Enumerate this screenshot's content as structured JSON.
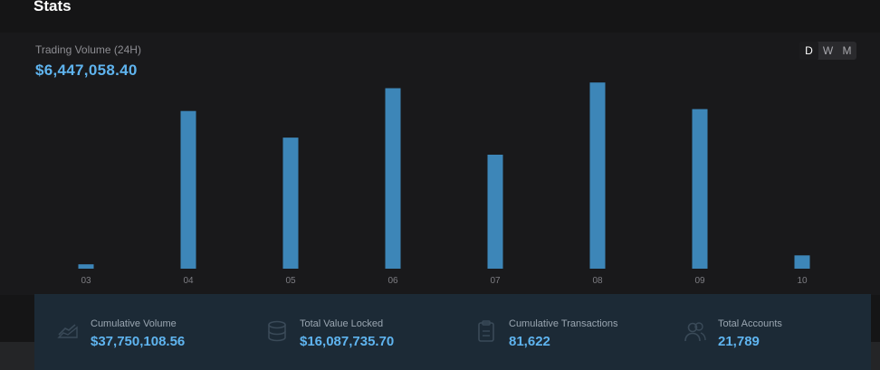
{
  "page": {
    "title": "Stats"
  },
  "volume": {
    "label": "Trading Volume (24H)",
    "value": "$6,447,058.40"
  },
  "period_toggle": {
    "options": [
      "D",
      "W",
      "M"
    ],
    "selected": "D"
  },
  "chart_data": {
    "type": "bar",
    "categories": [
      "03",
      "04",
      "05",
      "06",
      "07",
      "08",
      "09",
      "10"
    ],
    "values": [
      2.3,
      83,
      69,
      95,
      60,
      98,
      84,
      7
    ],
    "color": "#3d86b8",
    "ylim": [
      0,
      100
    ],
    "grid": false
  },
  "stats": [
    {
      "label": "Cumulative Volume",
      "value": "$37,750,108.56",
      "icon": "volume-icon"
    },
    {
      "label": "Total Value Locked",
      "value": "$16,087,735.70",
      "icon": "database-icon"
    },
    {
      "label": "Cumulative Transactions",
      "value": "81,622",
      "icon": "clipboard-icon"
    },
    {
      "label": "Total Accounts",
      "value": "21,789",
      "icon": "users-icon"
    }
  ],
  "colors": {
    "accent": "#5fb4ef",
    "bar": "#3d86b8",
    "background": "#151516"
  }
}
